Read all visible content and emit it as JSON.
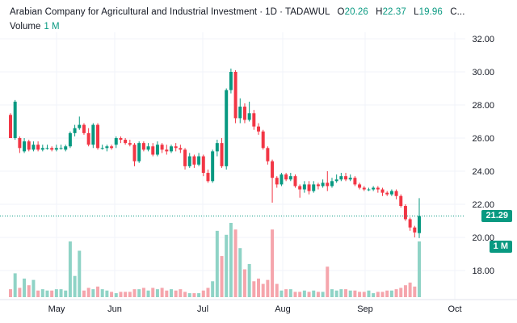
{
  "header": {
    "title": "Arabian Company for Agricultural and Industrial Investment",
    "interval": "1D",
    "exchange": "TADAWUL",
    "open_label": "O",
    "open": "20.26",
    "high_label": "H",
    "high": "22.37",
    "low_label": "L",
    "low": "19.96",
    "close_label": "C",
    "close_truncated": "..."
  },
  "volume_legend": {
    "label": "Volume",
    "value": "1 M"
  },
  "price_tag": "21.29",
  "volume_tag": "1 M",
  "colors": {
    "up": "#089981",
    "down": "#f23645",
    "up_vol": "#8fd3c6",
    "down_vol": "#f5a5ac",
    "grid": "#f0f3fa",
    "text": "#131722"
  },
  "chart_data": {
    "type": "candlestick",
    "y_ticks": [
      "32.00",
      "30.00",
      "28.00",
      "26.00",
      "24.00",
      "22.00",
      "20.00",
      "18.00"
    ],
    "ylim": [
      16.8,
      33.0
    ],
    "x_ticks": [
      "May",
      "Jun",
      "Jul",
      "Aug",
      "Sep",
      "Oct"
    ],
    "last_price": 21.29,
    "candles": [
      [
        27.4,
        26.0,
        27.5,
        26.0,
        0.3
      ],
      [
        26.0,
        28.2,
        28.3,
        25.9,
        0.9
      ],
      [
        26.0,
        25.4,
        26.1,
        25.1,
        0.35
      ],
      [
        25.2,
        25.8,
        26.0,
        25.1,
        0.7
      ],
      [
        25.8,
        25.3,
        25.9,
        25.2,
        0.45
      ],
      [
        25.3,
        25.6,
        25.8,
        25.2,
        0.65
      ],
      [
        25.6,
        25.3,
        25.8,
        25.2,
        0.25
      ],
      [
        25.3,
        25.4,
        25.6,
        25.2,
        0.3
      ],
      [
        25.4,
        25.4,
        25.6,
        25.3,
        0.25
      ],
      [
        25.4,
        25.3,
        25.5,
        25.2,
        0.25
      ],
      [
        25.3,
        25.4,
        25.6,
        25.2,
        0.3
      ],
      [
        25.4,
        25.4,
        25.6,
        25.3,
        0.3
      ],
      [
        25.3,
        25.5,
        25.6,
        25.2,
        0.25
      ],
      [
        25.5,
        26.3,
        26.4,
        25.4,
        2.1
      ],
      [
        26.3,
        26.6,
        26.8,
        26.1,
        0.8
      ],
      [
        26.6,
        26.8,
        27.3,
        26.5,
        1.75
      ],
      [
        26.8,
        26.3,
        26.9,
        26.2,
        0.25
      ],
      [
        26.3,
        25.6,
        26.6,
        25.5,
        0.35
      ],
      [
        25.6,
        26.8,
        26.9,
        25.4,
        0.3
      ],
      [
        26.8,
        25.4,
        26.9,
        25.3,
        0.4
      ],
      [
        25.4,
        25.4,
        25.6,
        25.3,
        0.3
      ],
      [
        25.4,
        25.5,
        25.6,
        25.2,
        0.25
      ],
      [
        25.5,
        25.4,
        25.6,
        25.3,
        0.2
      ],
      [
        25.6,
        26.0,
        26.1,
        25.4,
        0.15
      ],
      [
        26.0,
        25.9,
        26.1,
        25.7,
        0.2
      ],
      [
        25.9,
        25.7,
        26.0,
        25.6,
        0.2
      ],
      [
        25.7,
        25.6,
        25.9,
        25.5,
        0.2
      ],
      [
        25.6,
        24.6,
        25.7,
        24.3,
        0.3
      ],
      [
        24.6,
        25.7,
        25.8,
        24.5,
        0.3
      ],
      [
        25.7,
        25.3,
        25.8,
        25.2,
        0.35
      ],
      [
        25.3,
        25.5,
        25.7,
        25.2,
        0.25
      ],
      [
        25.5,
        25.0,
        25.7,
        24.9,
        0.35
      ],
      [
        25.0,
        25.6,
        25.8,
        24.9,
        0.3
      ],
      [
        25.6,
        25.3,
        25.7,
        25.1,
        0.35
      ],
      [
        25.3,
        25.2,
        25.6,
        25.0,
        0.25
      ],
      [
        25.2,
        25.5,
        25.6,
        25.1,
        0.3
      ],
      [
        25.5,
        25.4,
        25.7,
        25.2,
        0.25
      ],
      [
        25.4,
        25.3,
        25.6,
        25.1,
        0.3
      ],
      [
        25.3,
        24.3,
        25.4,
        24.1,
        0.2
      ],
      [
        24.3,
        24.9,
        25.1,
        24.2,
        0.15
      ],
      [
        24.9,
        24.4,
        25.0,
        24.2,
        0.15
      ],
      [
        24.4,
        24.9,
        25.1,
        24.3,
        0.15
      ],
      [
        24.9,
        23.9,
        25.0,
        23.7,
        0.25
      ],
      [
        23.9,
        23.4,
        24.1,
        23.3,
        0.35
      ],
      [
        23.4,
        25.2,
        25.3,
        23.3,
        0.6
      ],
      [
        25.2,
        25.7,
        25.9,
        24.9,
        2.5
      ],
      [
        25.7,
        24.3,
        26.0,
        24.2,
        1.55
      ],
      [
        24.3,
        28.9,
        29.0,
        24.1,
        2.35
      ],
      [
        28.9,
        30.0,
        30.2,
        28.7,
        2.8
      ],
      [
        30.0,
        27.2,
        30.1,
        26.9,
        2.55
      ],
      [
        27.2,
        27.9,
        28.4,
        26.9,
        1.85
      ],
      [
        27.9,
        27.1,
        28.1,
        26.9,
        1.05
      ],
      [
        27.1,
        27.5,
        28.2,
        27.0,
        1.25
      ],
      [
        27.5,
        26.7,
        27.7,
        26.5,
        0.6
      ],
      [
        26.7,
        26.4,
        26.9,
        26.2,
        0.7
      ],
      [
        26.4,
        25.4,
        26.5,
        25.3,
        0.5
      ],
      [
        25.4,
        24.6,
        25.5,
        24.4,
        0.65
      ],
      [
        24.6,
        23.6,
        24.7,
        22.1,
        2.55
      ],
      [
        23.6,
        23.2,
        23.7,
        23.0,
        0.5
      ],
      [
        23.2,
        23.8,
        23.9,
        23.1,
        0.25
      ],
      [
        23.8,
        23.5,
        23.9,
        23.4,
        0.3
      ],
      [
        23.5,
        23.7,
        23.9,
        23.4,
        0.3
      ],
      [
        23.7,
        23.1,
        23.8,
        23.0,
        0.2
      ],
      [
        23.1,
        22.9,
        23.2,
        22.4,
        0.2
      ],
      [
        22.9,
        23.2,
        23.4,
        22.7,
        0.25
      ],
      [
        23.2,
        22.8,
        23.4,
        22.6,
        0.2
      ],
      [
        22.8,
        23.2,
        23.4,
        22.7,
        0.25
      ],
      [
        23.2,
        23.1,
        23.3,
        22.9,
        0.2
      ],
      [
        23.1,
        23.3,
        23.5,
        23.0,
        0.2
      ],
      [
        23.3,
        23.1,
        24.0,
        22.8,
        1.15
      ],
      [
        23.1,
        23.4,
        23.6,
        23.0,
        0.3
      ],
      [
        23.4,
        23.5,
        23.8,
        23.3,
        0.25
      ],
      [
        23.5,
        23.7,
        23.9,
        23.4,
        0.3
      ],
      [
        23.7,
        23.5,
        23.9,
        23.4,
        0.3
      ],
      [
        23.5,
        23.6,
        23.8,
        23.4,
        0.25
      ],
      [
        23.6,
        23.2,
        23.7,
        23.1,
        0.25
      ],
      [
        23.2,
        23.0,
        23.3,
        22.9,
        0.2
      ],
      [
        23.0,
        22.9,
        23.1,
        22.8,
        0.2
      ],
      [
        22.9,
        22.9,
        23.0,
        22.8,
        0.25
      ],
      [
        22.9,
        23.0,
        23.1,
        22.8,
        0.15
      ],
      [
        23.0,
        22.9,
        23.1,
        22.7,
        0.2
      ],
      [
        22.9,
        22.7,
        23.0,
        22.5,
        0.2
      ],
      [
        22.7,
        22.6,
        22.8,
        22.5,
        0.25
      ],
      [
        22.6,
        22.8,
        22.9,
        22.5,
        0.25
      ],
      [
        22.8,
        22.5,
        22.9,
        22.3,
        0.3
      ],
      [
        22.5,
        21.9,
        22.6,
        21.8,
        0.35
      ],
      [
        21.9,
        21.1,
        22.0,
        21.0,
        0.45
      ],
      [
        21.1,
        20.6,
        21.2,
        20.4,
        0.55
      ],
      [
        20.6,
        20.3,
        20.7,
        20.0,
        0.4
      ],
      [
        20.26,
        21.29,
        22.37,
        19.96,
        2.1
      ]
    ]
  }
}
